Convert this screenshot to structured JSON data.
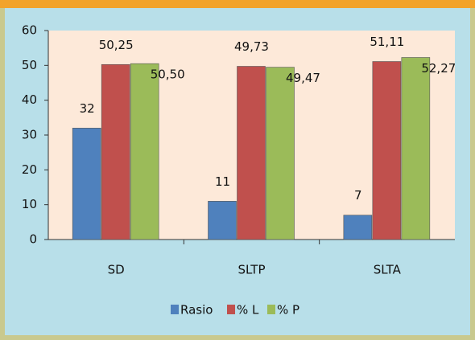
{
  "chart_data": {
    "type": "bar",
    "categories": [
      "SD",
      "SLTP",
      "SLTA"
    ],
    "series": [
      {
        "name": "Rasio",
        "color": "#4f81bd",
        "values": [
          32,
          11,
          7
        ]
      },
      {
        "name": "% L",
        "color": "#c0504d",
        "values": [
          50.25,
          49.73,
          51.11
        ],
        "value_labels": [
          "50,25",
          "49,73",
          "51,11"
        ]
      },
      {
        "name": "% P",
        "color": "#9bbb59",
        "values": [
          50.5,
          49.47,
          52.27
        ],
        "value_labels": [
          "50,50",
          "49,47",
          "52,27"
        ]
      }
    ],
    "ylim": [
      0,
      60
    ],
    "yticks": [
      0,
      10,
      20,
      30,
      40,
      50,
      60
    ],
    "legend": "bottom"
  }
}
